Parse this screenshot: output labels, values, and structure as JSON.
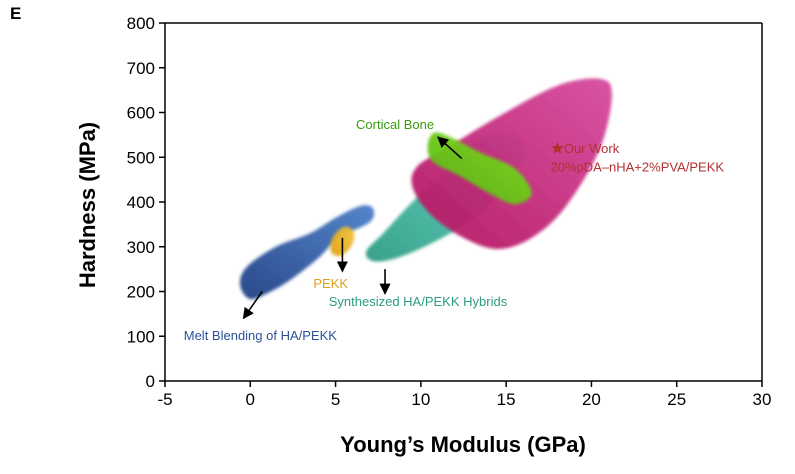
{
  "panel_label": "E",
  "chart_data": {
    "type": "scatter",
    "title": "",
    "xlabel": "Young’s Modulus (GPa)",
    "ylabel": "Hardness (MPa)",
    "xlim": [
      -5,
      30
    ],
    "ylim": [
      0,
      800
    ],
    "xticks": [
      -5,
      0,
      5,
      10,
      15,
      20,
      25,
      30
    ],
    "yticks": [
      0,
      100,
      200,
      300,
      400,
      500,
      600,
      700,
      800
    ],
    "grid": false,
    "legend": "none",
    "regions": [
      {
        "name": "Melt Blending of HA/PEKK",
        "color": "#4a7fc8",
        "color_dark": "#1e3f84",
        "outline": [
          [
            0,
            183
          ],
          [
            -0.6,
            215
          ],
          [
            -0.2,
            255
          ],
          [
            1.5,
            300
          ],
          [
            3.5,
            330
          ],
          [
            5,
            365
          ],
          [
            6.5,
            392
          ],
          [
            7.2,
            385
          ],
          [
            7,
            355
          ],
          [
            5.2,
            320
          ],
          [
            4,
            275
          ],
          [
            2.5,
            230
          ],
          [
            1.2,
            200
          ]
        ]
      },
      {
        "name": "Synthesized HA/PEKK Hybrids",
        "color": "#5fd9c2",
        "color_dark": "#2e9c84",
        "outline": [
          [
            7.2,
            268
          ],
          [
            8.6,
            275
          ],
          [
            11,
            315
          ],
          [
            13.5,
            375
          ],
          [
            15.2,
            450
          ],
          [
            16.1,
            515
          ],
          [
            15.3,
            550
          ],
          [
            13.5,
            540
          ],
          [
            11.5,
            470
          ],
          [
            9.5,
            400
          ],
          [
            7.8,
            330
          ],
          [
            6.8,
            290
          ]
        ]
      },
      {
        "name": "20%pDA-nHA+2%PVA/PEKK",
        "color": "#d64a9f",
        "color_dark": "#b3125e",
        "outline": [
          [
            9.5,
            435
          ],
          [
            10.5,
            375
          ],
          [
            12.5,
            320
          ],
          [
            14.5,
            295
          ],
          [
            16.5,
            320
          ],
          [
            18.5,
            390
          ],
          [
            20.5,
            520
          ],
          [
            21.2,
            640
          ],
          [
            20.5,
            675
          ],
          [
            18,
            660
          ],
          [
            14.5,
            590
          ],
          [
            11.5,
            520
          ],
          [
            9.8,
            480
          ]
        ]
      },
      {
        "name": "Cortical Bone",
        "color": "#7fe020",
        "color_dark": "#55b010",
        "outline": [
          [
            10.4,
            525
          ],
          [
            10.8,
            555
          ],
          [
            12,
            540
          ],
          [
            13.5,
            510
          ],
          [
            15.5,
            475
          ],
          [
            16.5,
            420
          ],
          [
            15.5,
            395
          ],
          [
            14,
            420
          ],
          [
            12.2,
            460
          ],
          [
            10.7,
            490
          ]
        ]
      },
      {
        "name": "PEKK",
        "color": "#f3c53c",
        "color_dark": "#e0a010",
        "outline": [
          [
            4.8,
            285
          ],
          [
            5.3,
            280
          ],
          [
            5.9,
            300
          ],
          [
            6.1,
            330
          ],
          [
            5.6,
            345
          ],
          [
            5,
            330
          ],
          [
            4.7,
            305
          ]
        ]
      }
    ],
    "arrows": [
      {
        "from": [
          0.7,
          200
        ],
        "to": [
          -0.4,
          140
        ]
      },
      {
        "from": [
          5.4,
          320
        ],
        "to": [
          5.4,
          245
        ]
      },
      {
        "from": [
          7.9,
          250
        ],
        "to": [
          7.9,
          195
        ]
      },
      {
        "from": [
          12.4,
          497
        ],
        "to": [
          11,
          545
        ]
      }
    ],
    "labels": [
      {
        "text": "Melt Blending of HA/PEKK",
        "x": -3.9,
        "y": 92,
        "color": "#2a5298"
      },
      {
        "text": "PEKK",
        "x": 3.7,
        "y": 208,
        "color": "#d9a018"
      },
      {
        "text": "Synthesized HA/PEKK Hybrids",
        "x": 4.6,
        "y": 168,
        "color": "#2e9c84"
      },
      {
        "text": "Cortical Bone",
        "x": 6.2,
        "y": 563,
        "color": "#3a9a10"
      },
      {
        "text": "★Our Work",
        "x": 17.7,
        "y": 510,
        "color": "#b33030"
      },
      {
        "text": "20%pDA–nHA+2%PVA/PEKK",
        "x": 17.6,
        "y": 468,
        "color": "#b33030"
      }
    ],
    "points": [
      {
        "name": "Our Work",
        "x": 18,
        "y": 520,
        "marker": "star",
        "color": "#b33030"
      }
    ]
  }
}
